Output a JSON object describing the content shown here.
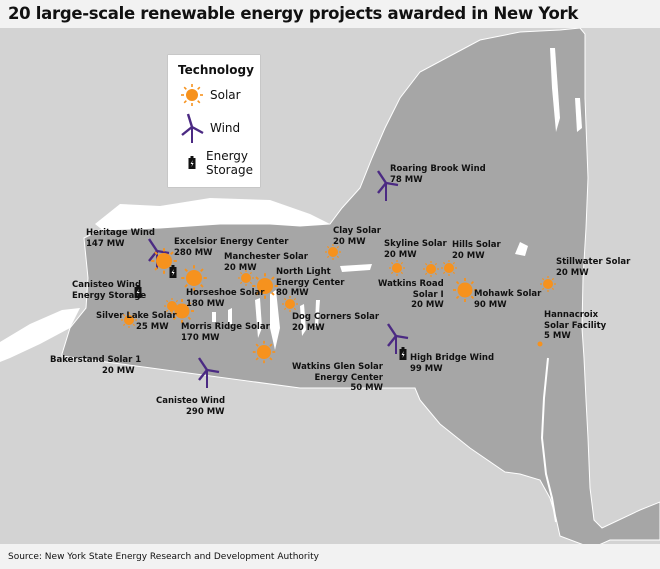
{
  "title": "20 large-scale renewable energy projects awarded in New York",
  "source": "Source: New York State Energy Research and Development Authority",
  "legend": {
    "title": "Technology",
    "solar": "Solar",
    "wind": "Wind",
    "storage_l1": "Energy",
    "storage_l2": "Storage"
  },
  "colors": {
    "solar": "#f6921e",
    "wind": "#4b2a83",
    "storage": "#111111",
    "state": "#a6a6a6",
    "land": "#d3d3d3",
    "water": "#ffffff"
  },
  "projects": [
    {
      "id": "heritage",
      "type": "wind",
      "l1": "Heritage Wind",
      "l2": "147 MW"
    },
    {
      "id": "excelsior",
      "type": "solar+storage",
      "l1": "Excelsior Energy Center",
      "l2": "280 MW"
    },
    {
      "id": "canisteo-storage",
      "type": "storage",
      "l1": "Canisteo Wind",
      "l2": "Energy Storage"
    },
    {
      "id": "horseshoe",
      "type": "solar",
      "l1": "Horseshoe Solar",
      "l2": "180 MW"
    },
    {
      "id": "manchester",
      "type": "solar",
      "l1": "Manchester Solar",
      "l2": "20 MW"
    },
    {
      "id": "northlight",
      "type": "solar",
      "l1": "North Light",
      "l2": "Energy Center",
      "l3": "80 MW"
    },
    {
      "id": "silverlake",
      "type": "solar",
      "l1": "Silver Lake Solar",
      "l2": "25 MW"
    },
    {
      "id": "morrisridge",
      "type": "solar",
      "l1": "Morris Ridge Solar",
      "l2": "170 MW"
    },
    {
      "id": "dogcorners",
      "type": "solar",
      "l1": "Dog Corners Solar",
      "l2": "20 MW"
    },
    {
      "id": "bakerstand",
      "type": "solar",
      "l1": "Bakerstand Solar 1",
      "l2": "20 MW"
    },
    {
      "id": "watkinsglen",
      "type": "solar",
      "l1": "Watkins Glen Solar",
      "l2": "Energy Center",
      "l3": "50 MW"
    },
    {
      "id": "canisteo",
      "type": "wind",
      "l1": "Canisteo Wind",
      "l2": "290 MW"
    },
    {
      "id": "roaringbrook",
      "type": "wind",
      "l1": "Roaring Brook Wind",
      "l2": "78 MW"
    },
    {
      "id": "clay",
      "type": "solar",
      "l1": "Clay Solar",
      "l2": "20 MW"
    },
    {
      "id": "skyline",
      "type": "solar",
      "l1": "Skyline Solar",
      "l2": "20 MW"
    },
    {
      "id": "hills",
      "type": "solar",
      "l1": "Hills Solar",
      "l2": "20 MW"
    },
    {
      "id": "watkinsroad",
      "type": "solar",
      "l1": "Watkins Road",
      "l2": "Solar I",
      "l3": "20 MW"
    },
    {
      "id": "mohawk",
      "type": "solar",
      "l1": "Mohawk Solar",
      "l2": "90 MW"
    },
    {
      "id": "stillwater",
      "type": "solar",
      "l1": "Stillwater Solar",
      "l2": "20 MW"
    },
    {
      "id": "hannacroix",
      "type": "solar",
      "l1": "Hannacroix",
      "l2": "Solar Facility",
      "l3": "5 MW"
    },
    {
      "id": "highbridge",
      "type": "wind+storage",
      "l1": "High Bridge Wind",
      "l2": "99 MW"
    }
  ]
}
